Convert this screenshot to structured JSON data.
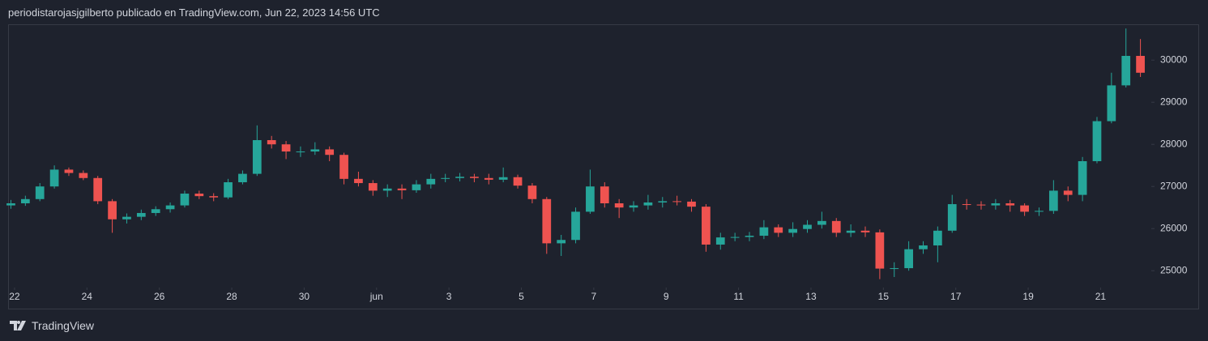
{
  "chart_data": {
    "type": "candlestick",
    "title": "periodistarojasjgilberto publicado en TradingView.com, Jun 22, 2023 14:56 UTC",
    "brand": "TradingView",
    "up_color": "#26a69a",
    "down_color": "#ef5350",
    "x": [
      0.9,
      1.3,
      1.7,
      2.1,
      2.5,
      2.9,
      3.3,
      3.7,
      4.1,
      4.5,
      4.9,
      5.3,
      5.7,
      6.1,
      6.5,
      6.9,
      7.3,
      7.7,
      8.1,
      8.5,
      8.9,
      9.3,
      9.7,
      10.1,
      10.5,
      10.9,
      11.3,
      11.7,
      12.1,
      12.5,
      12.9,
      13.3,
      13.7,
      14.1,
      14.5,
      14.9,
      15.3,
      15.7,
      16.1,
      16.5,
      16.9,
      17.3,
      17.7,
      18.1,
      18.5,
      18.9,
      19.3,
      19.7,
      20.1,
      20.5,
      20.9,
      21.3,
      21.7,
      22.1,
      22.5,
      22.9,
      23.3,
      23.7,
      24.1,
      24.5,
      24.9,
      25.3,
      25.7,
      26.1,
      26.5,
      26.9,
      27.3,
      27.7,
      28.1,
      28.5,
      28.9,
      29.3,
      29.7,
      30.1,
      30.5,
      30.9,
      31.3,
      31.7,
      32.1
    ],
    "open": [
      26550,
      26600,
      26700,
      27000,
      27400,
      27320,
      27200,
      26650,
      26220,
      26280,
      26370,
      26460,
      26550,
      26830,
      26770,
      26740,
      27100,
      27300,
      28100,
      28000,
      27830,
      27830,
      27880,
      27750,
      27180,
      27080,
      26900,
      26950,
      26910,
      27050,
      27180,
      27200,
      27230,
      27200,
      27160,
      27220,
      27020,
      26700,
      25650,
      25730,
      26400,
      27000,
      26600,
      26500,
      26550,
      26620,
      26650,
      26640,
      26520,
      25620,
      25790,
      25800,
      25830,
      26030,
      25900,
      25990,
      26090,
      26180,
      25900,
      25950,
      25910,
      25050,
      25060,
      25510,
      25600,
      25950,
      26580,
      26570,
      26550,
      26600,
      26550,
      26400,
      26420,
      26900,
      26800,
      27600,
      28550,
      29400,
      30100
    ],
    "high": [
      26680,
      26780,
      27080,
      27500,
      27450,
      27380,
      27250,
      26700,
      26360,
      26450,
      26530,
      26620,
      26900,
      26900,
      26840,
      27180,
      27380,
      28450,
      28200,
      28080,
      27950,
      28050,
      27950,
      27800,
      27350,
      27150,
      27050,
      27050,
      27150,
      27300,
      27300,
      27320,
      27300,
      27300,
      27450,
      27280,
      27080,
      26750,
      25850,
      26500,
      27400,
      27100,
      26700,
      26650,
      26800,
      26750,
      26780,
      26700,
      26580,
      25900,
      25900,
      25920,
      26200,
      26100,
      26150,
      26200,
      26400,
      26250,
      26100,
      26050,
      25980,
      25200,
      25700,
      25700,
      26050,
      26800,
      26700,
      26650,
      26700,
      26680,
      26600,
      26500,
      27150,
      27000,
      27700,
      28650,
      29700,
      30750,
      30500
    ],
    "low": [
      26470,
      26540,
      26650,
      26950,
      27250,
      27150,
      26580,
      25900,
      26120,
      26200,
      26300,
      26380,
      26500,
      26700,
      26650,
      26700,
      27050,
      27250,
      27900,
      27650,
      27700,
      27750,
      27600,
      27050,
      27000,
      26780,
      26750,
      26700,
      26850,
      26950,
      27100,
      27120,
      27100,
      27050,
      27100,
      26950,
      26600,
      25400,
      25350,
      25650,
      26350,
      26500,
      26250,
      26400,
      26450,
      26500,
      26550,
      26400,
      25450,
      25500,
      25700,
      25700,
      25750,
      25800,
      25800,
      25900,
      26000,
      25800,
      25800,
      25800,
      24800,
      24850,
      25000,
      25400,
      25200,
      25900,
      26450,
      26450,
      26450,
      26400,
      26300,
      26300,
      26350,
      26650,
      26650,
      27550,
      28500,
      29350,
      29600
    ],
    "close": [
      26600,
      26700,
      27000,
      27400,
      27320,
      27200,
      26650,
      26220,
      26280,
      26370,
      26460,
      26550,
      26830,
      26770,
      26740,
      27100,
      27300,
      28100,
      28000,
      27830,
      27830,
      27880,
      27750,
      27180,
      27080,
      26900,
      26950,
      26910,
      27050,
      27180,
      27200,
      27230,
      27200,
      27160,
      27220,
      27020,
      26700,
      25650,
      25730,
      26400,
      27000,
      26600,
      26500,
      26550,
      26620,
      26650,
      26640,
      26520,
      25620,
      25790,
      25800,
      25830,
      26030,
      25900,
      25990,
      26090,
      26180,
      25900,
      25950,
      25910,
      25050,
      25060,
      25510,
      25600,
      25950,
      26580,
      26570,
      26550,
      26600,
      26550,
      26400,
      26420,
      26900,
      26800,
      27600,
      28550,
      29400,
      30100,
      29700
    ],
    "xlim": [
      0.8,
      32.4
    ],
    "xticks": [
      {
        "value": 1,
        "label": "22"
      },
      {
        "value": 3,
        "label": "24"
      },
      {
        "value": 5,
        "label": "26"
      },
      {
        "value": 7,
        "label": "28"
      },
      {
        "value": 9,
        "label": "30"
      },
      {
        "value": 11,
        "label": "jun"
      },
      {
        "value": 13,
        "label": "3"
      },
      {
        "value": 15,
        "label": "5"
      },
      {
        "value": 17,
        "label": "7"
      },
      {
        "value": 19,
        "label": "9"
      },
      {
        "value": 21,
        "label": "11"
      },
      {
        "value": 23,
        "label": "13"
      },
      {
        "value": 25,
        "label": "15"
      },
      {
        "value": 27,
        "label": "17"
      },
      {
        "value": 29,
        "label": "19"
      },
      {
        "value": 31,
        "label": "21"
      }
    ],
    "ylim": [
      24600,
      30850
    ],
    "yticks": [
      25000,
      26000,
      27000,
      28000,
      29000,
      30000
    ],
    "grid": false
  }
}
